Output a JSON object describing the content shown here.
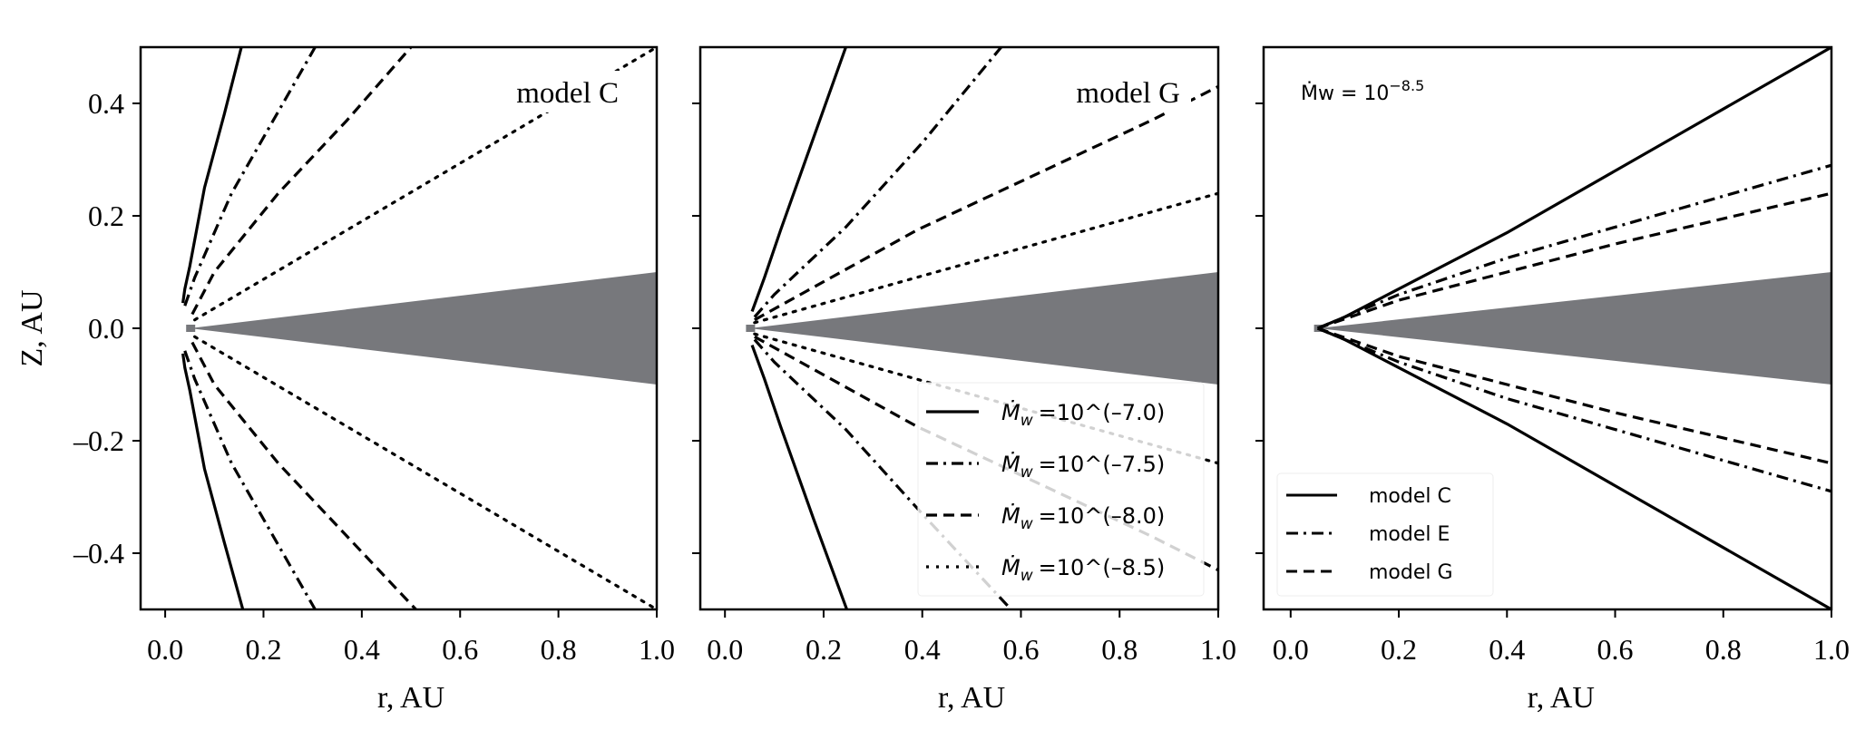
{
  "colors": {
    "disk": "#77787c",
    "line": "#000000",
    "frame": "#000000"
  },
  "chart_data": [
    {
      "type": "line",
      "panel_label": "model C",
      "xlabel": "r, AU",
      "ylabel": "Z, AU",
      "xlim": [
        -0.05,
        1.0
      ],
      "ylim": [
        -0.5,
        0.5
      ],
      "xticks": [
        "0.0",
        "0.2",
        "0.4",
        "0.6",
        "0.8",
        "1.0"
      ],
      "yticks": [
        "0.4",
        "0.2",
        "0.0",
        "–0.2",
        "–0.4"
      ],
      "grid": false,
      "disk": {
        "r": [
          0.05,
          1.0
        ],
        "z_half": [
          0.0,
          0.1
        ]
      },
      "series": [
        {
          "style": "solid",
          "upper": [
            [
              0.036,
              0.045
            ],
            [
              0.04,
              0.07
            ],
            [
              0.05,
              0.11
            ],
            [
              0.08,
              0.25
            ],
            [
              0.12,
              0.38
            ],
            [
              0.155,
              0.5
            ]
          ],
          "lower": [
            [
              0.036,
              -0.045
            ],
            [
              0.04,
              -0.07
            ],
            [
              0.05,
              -0.11
            ],
            [
              0.08,
              -0.25
            ],
            [
              0.12,
              -0.38
            ],
            [
              0.158,
              -0.5
            ]
          ]
        },
        {
          "style": "dashdot",
          "upper": [
            [
              0.04,
              0.04
            ],
            [
              0.06,
              0.09
            ],
            [
              0.135,
              0.24
            ],
            [
              0.22,
              0.37
            ],
            [
              0.305,
              0.5
            ]
          ],
          "lower": [
            [
              0.04,
              -0.04
            ],
            [
              0.06,
              -0.09
            ],
            [
              0.135,
              -0.24
            ],
            [
              0.22,
              -0.37
            ],
            [
              0.305,
              -0.5
            ]
          ]
        },
        {
          "style": "dashed",
          "upper": [
            [
              0.055,
              0.025
            ],
            [
              0.1,
              0.1
            ],
            [
              0.23,
              0.24
            ],
            [
              0.37,
              0.37
            ],
            [
              0.5,
              0.5
            ]
          ],
          "lower": [
            [
              0.055,
              -0.025
            ],
            [
              0.1,
              -0.1
            ],
            [
              0.23,
              -0.24
            ],
            [
              0.37,
              -0.37
            ],
            [
              0.51,
              -0.5
            ]
          ]
        },
        {
          "style": "dotted",
          "upper": [
            [
              0.06,
              0.015
            ],
            [
              0.51,
              0.247
            ],
            [
              1.0,
              0.5
            ]
          ],
          "lower": [
            [
              0.06,
              -0.015
            ],
            [
              0.51,
              -0.247
            ],
            [
              1.0,
              -0.5
            ]
          ]
        }
      ]
    },
    {
      "type": "line",
      "panel_label": "model G",
      "xlabel": "r, AU",
      "xlim": [
        -0.05,
        1.0
      ],
      "ylim": [
        -0.5,
        0.5
      ],
      "xticks": [
        "0.0",
        "0.2",
        "0.4",
        "0.6",
        "0.8",
        "1.0"
      ],
      "grid": false,
      "legend_placement": "lower-right",
      "disk": {
        "r": [
          0.05,
          1.0
        ],
        "z_half": [
          0.0,
          0.1
        ]
      },
      "series": [
        {
          "name": "Ṁw =10^(–7.0)",
          "name_main": "=10^(–7.0)",
          "style": "solid",
          "upper": [
            [
              0.055,
              0.03
            ],
            [
              0.08,
              0.09
            ],
            [
              0.113,
              0.175
            ],
            [
              0.18,
              0.34
            ],
            [
              0.245,
              0.5
            ]
          ],
          "lower": [
            [
              0.055,
              -0.03
            ],
            [
              0.08,
              -0.09
            ],
            [
              0.113,
              -0.175
            ],
            [
              0.18,
              -0.34
            ],
            [
              0.247,
              -0.5
            ]
          ]
        },
        {
          "name": "Ṁw =10^(–7.5)",
          "name_main": "=10^(–7.5)",
          "style": "dashdot",
          "upper": [
            [
              0.06,
              0.02
            ],
            [
              0.1,
              0.06
            ],
            [
              0.245,
              0.18
            ],
            [
              0.4,
              0.33
            ],
            [
              0.56,
              0.5
            ]
          ],
          "lower": [
            [
              0.06,
              -0.02
            ],
            [
              0.1,
              -0.06
            ],
            [
              0.245,
              -0.18
            ],
            [
              0.4,
              -0.33
            ],
            [
              0.58,
              -0.5
            ]
          ]
        },
        {
          "name": "Ṁw =10^(–8.0)",
          "name_main": "=10^(–8.0)",
          "style": "dashed",
          "upper": [
            [
              0.06,
              0.015
            ],
            [
              0.39,
              0.175
            ],
            [
              0.865,
              0.37
            ],
            [
              1.0,
              0.43
            ]
          ],
          "lower": [
            [
              0.06,
              -0.015
            ],
            [
              0.39,
              -0.175
            ],
            [
              0.865,
              -0.37
            ],
            [
              1.0,
              -0.43
            ]
          ]
        },
        {
          "name": "Ṁw =10^(–8.5)",
          "name_main": "=10^(–8.5)",
          "style": "dotted",
          "upper": [
            [
              0.06,
              0.01
            ],
            [
              1.0,
              0.24
            ]
          ],
          "lower": [
            [
              0.06,
              -0.01
            ],
            [
              1.0,
              -0.24
            ]
          ]
        }
      ]
    },
    {
      "type": "line",
      "annotation": {
        "prefix": "Ṁw = 10",
        "exponent": "−8.5"
      },
      "xlabel": "r, AU",
      "xlim": [
        -0.05,
        1.0
      ],
      "ylim": [
        -0.5,
        0.5
      ],
      "xticks": [
        "0.0",
        "0.2",
        "0.4",
        "0.6",
        "0.8",
        "1.0"
      ],
      "grid": false,
      "legend_placement": "lower-left",
      "disk": {
        "r": [
          0.05,
          1.0
        ],
        "z_half": [
          0.0,
          0.1
        ]
      },
      "series": [
        {
          "name": "model C",
          "style": "solid",
          "upper": [
            [
              0.05,
              0
            ],
            [
              0.1,
              0.02
            ],
            [
              0.2,
              0.07
            ],
            [
              0.4,
              0.17
            ],
            [
              0.6,
              0.28
            ],
            [
              0.8,
              0.39
            ],
            [
              1.0,
              0.5
            ]
          ],
          "lower": [
            [
              0.05,
              0
            ],
            [
              0.1,
              -0.02
            ],
            [
              0.2,
              -0.07
            ],
            [
              0.4,
              -0.17
            ],
            [
              0.6,
              -0.28
            ],
            [
              0.8,
              -0.39
            ],
            [
              1.0,
              -0.5
            ]
          ]
        },
        {
          "name": "model E",
          "style": "dashdot",
          "upper": [
            [
              0.05,
              0
            ],
            [
              0.2,
              0.06
            ],
            [
              0.4,
              0.125
            ],
            [
              0.6,
              0.18
            ],
            [
              1.0,
              0.29
            ]
          ],
          "lower": [
            [
              0.05,
              0
            ],
            [
              0.2,
              -0.06
            ],
            [
              0.4,
              -0.125
            ],
            [
              0.6,
              -0.18
            ],
            [
              1.0,
              -0.29
            ]
          ]
        },
        {
          "name": "model G",
          "style": "dashed",
          "upper": [
            [
              0.05,
              0
            ],
            [
              0.2,
              0.05
            ],
            [
              0.4,
              0.1
            ],
            [
              0.6,
              0.15
            ],
            [
              1.0,
              0.24
            ]
          ],
          "lower": [
            [
              0.05,
              0
            ],
            [
              0.2,
              -0.05
            ],
            [
              0.4,
              -0.1
            ],
            [
              0.6,
              -0.15
            ],
            [
              1.0,
              -0.24
            ]
          ]
        }
      ]
    }
  ]
}
